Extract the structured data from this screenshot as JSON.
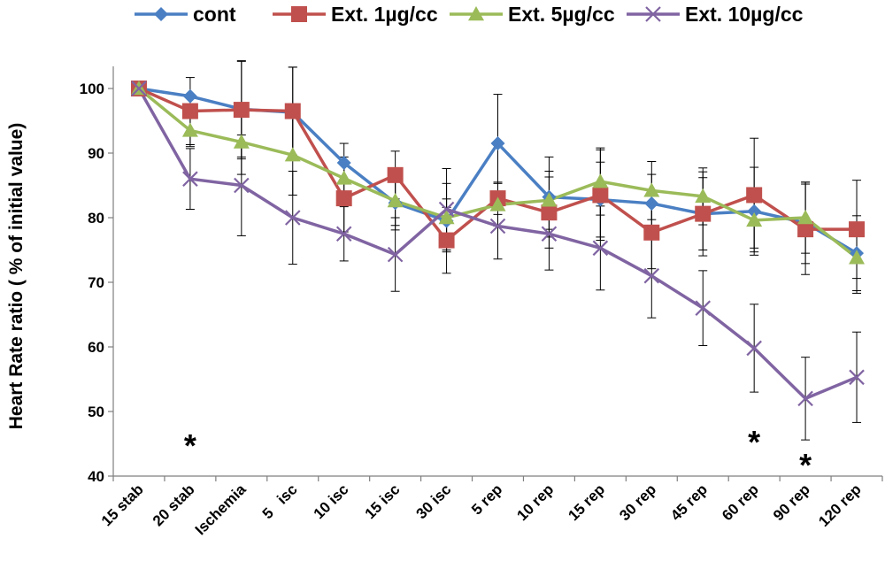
{
  "chart_data": {
    "type": "line",
    "title": "",
    "xlabel": "",
    "ylabel": "Heart Rate ratio ( % of initial value)",
    "ylim": [
      40,
      100
    ],
    "yticks": [
      40,
      50,
      60,
      70,
      80,
      90,
      100
    ],
    "grid": false,
    "legend_position": "top",
    "categories": [
      "15 stab",
      "20 stab",
      "Ischemia",
      "5   isc",
      "10 isc",
      "15 isc",
      "30 isc",
      "5 rep",
      "10 rep",
      "15 rep",
      "30 rep",
      "45 rep",
      "60 rep",
      "90 rep",
      "120 rep"
    ],
    "series": [
      {
        "name": "cont",
        "color": "#4a7fc3",
        "marker": "diamond",
        "values": [
          100,
          98.8,
          96.8,
          96.3,
          88.5,
          82.3,
          79.5,
          91.5,
          83.2,
          82.8,
          82.2,
          80.6,
          81.0,
          79.2,
          74.5
        ],
        "errors": [
          0,
          0,
          7.4,
          7.0,
          3.0,
          3.5,
          3.4,
          7.6,
          6.2,
          5.8,
          4.5,
          5.6,
          6.8,
          6.3,
          5.8
        ]
      },
      {
        "name": "Ext. 1µg/cc",
        "color": "#c0504d",
        "marker": "square",
        "values": [
          100,
          96.5,
          96.7,
          96.5,
          83.0,
          86.6,
          76.5,
          83.0,
          80.8,
          83.5,
          77.7,
          80.6,
          83.5,
          78.2,
          78.2
        ],
        "errors": [
          0,
          5.2,
          7.6,
          6.8,
          5.2,
          3.7,
          5.1,
          2.5,
          5.5,
          7.0,
          5.6,
          6.5,
          8.8,
          7.0,
          7.6
        ]
      },
      {
        "name": "Ext. 5µg/cc",
        "color": "#9bbb59",
        "marker": "triangle",
        "values": [
          100,
          93.5,
          91.7,
          89.7,
          86.1,
          82.6,
          80.0,
          82.0,
          82.7,
          85.6,
          84.2,
          83.3,
          79.6,
          80.0,
          73.8
        ],
        "errors": [
          0,
          2.5,
          5.0,
          6.2,
          3.3,
          4.5,
          5.3,
          3.3,
          4.5,
          5.2,
          4.5,
          4.4,
          4.3,
          5.5,
          5.5
        ]
      },
      {
        "name": "Ext. 10µg/cc",
        "color": "#8064a2",
        "marker": "x",
        "values": [
          100,
          86.0,
          85.0,
          80.0,
          77.5,
          74.3,
          81.3,
          78.7,
          77.5,
          75.3,
          71.0,
          66.0,
          59.8,
          52.0,
          55.3
        ],
        "errors": [
          0,
          4.7,
          7.8,
          7.2,
          4.2,
          5.7,
          6.3,
          5.1,
          5.6,
          6.5,
          6.5,
          5.8,
          6.8,
          6.4,
          7.0
        ]
      }
    ],
    "annotations": [
      {
        "text": "*",
        "category": "20 stab",
        "y": 45.5
      },
      {
        "text": "*",
        "category": "60 rep",
        "y": 46
      },
      {
        "text": "*",
        "category": "90 rep",
        "y": 42.5
      }
    ]
  }
}
